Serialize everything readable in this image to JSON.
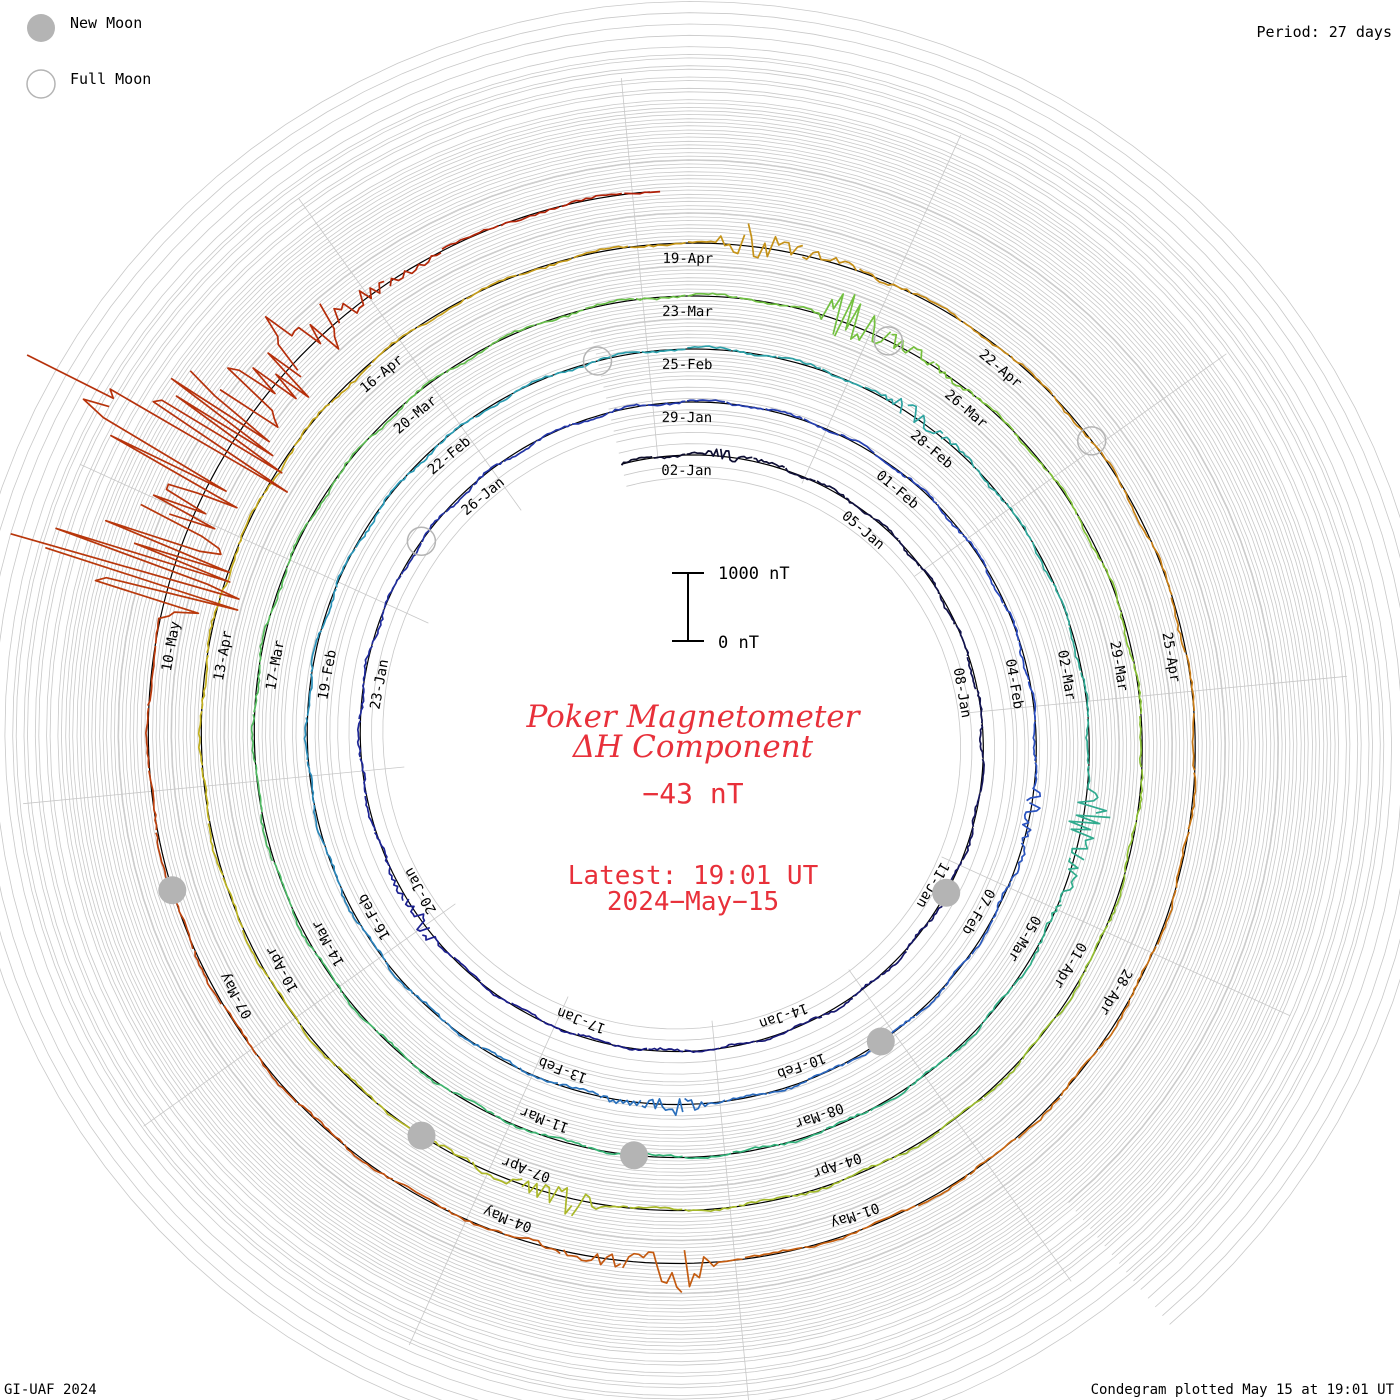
{
  "legend": {
    "new_moon": "New Moon",
    "full_moon": "Full Moon"
  },
  "period_label": "Period: 27 days",
  "footer": {
    "left": "GI-UAF 2024",
    "right": "Condegram plotted May 15 at 19:01 UT"
  },
  "center": {
    "title_line1": "Poker Magnetometer",
    "title_line2": "ΔH Component",
    "current_value": "−43 nT",
    "latest_line1": "Latest: 19:01 UT",
    "latest_line2": "2024−May−15",
    "scale_top": "1000 nT",
    "scale_bottom": "0 nT"
  },
  "colors": {
    "title": "#e8303a",
    "grid": "#c8c8c8",
    "spiral": "#000000",
    "moon_fill": "#b4b4b4",
    "moon_stroke": "#b4b4b4",
    "ramp": [
      "#0d0d2a",
      "#1b1d8c",
      "#2a4cc0",
      "#2a9ab8",
      "#33b37a",
      "#7ac23a",
      "#c2b21e",
      "#c96a12",
      "#b01e08"
    ]
  },
  "chart_data": {
    "type": "line",
    "title": "Poker Magnetometer ΔH Component",
    "period_days": 27,
    "start_date": "2024-01-01",
    "end_date": "2024-05-15",
    "units": "nT",
    "scale_bar_nT": 1000,
    "date_labels": [
      "02-Jan",
      "05-Jan",
      "08-Jan",
      "11-Jan",
      "14-Jan",
      "17-Jan",
      "20-Jan",
      "23-Jan",
      "26-Jan",
      "29-Jan",
      "01-Feb",
      "04-Feb",
      "07-Feb",
      "10-Feb",
      "13-Feb",
      "16-Feb",
      "19-Feb",
      "22-Feb",
      "25-Feb",
      "28-Feb",
      "02-Mar",
      "05-Mar",
      "08-Mar",
      "11-Mar",
      "14-Mar",
      "17-Mar",
      "20-Mar",
      "23-Mar",
      "26-Mar",
      "29-Mar",
      "01-Apr",
      "04-Apr",
      "07-Apr",
      "10-Apr",
      "13-Apr",
      "16-Apr",
      "19-Apr",
      "22-Apr",
      "25-Apr",
      "28-Apr",
      "01-May",
      "04-May",
      "07-May",
      "10-May"
    ],
    "new_moons": [
      "2024-01-11",
      "2024-02-09",
      "2024-03-10",
      "2024-04-08",
      "2024-05-08"
    ],
    "full_moons": [
      "2024-01-25",
      "2024-02-24",
      "2024-03-25",
      "2024-04-23"
    ],
    "disturbances": [
      {
        "date": "2024-01-02",
        "peak_nT": 120
      },
      {
        "date": "2024-01-19",
        "peak_nT": 150
      },
      {
        "date": "2024-02-05",
        "peak_nT": 160
      },
      {
        "date": "2024-02-11",
        "peak_nT": 200
      },
      {
        "date": "2024-02-27",
        "peak_nT": 180
      },
      {
        "date": "2024-03-03",
        "peak_nT": 400
      },
      {
        "date": "2024-03-24",
        "peak_nT": 500
      },
      {
        "date": "2024-04-06",
        "peak_nT": 300
      },
      {
        "date": "2024-04-19",
        "peak_nT": 350
      },
      {
        "date": "2024-05-02",
        "peak_nT": 450
      },
      {
        "date": "2024-05-10",
        "peak_nT": 2500
      },
      {
        "date": "2024-05-11",
        "peak_nT": 3000
      },
      {
        "date": "2024-05-12",
        "peak_nT": 800
      }
    ],
    "latest_value_nT": -43
  }
}
